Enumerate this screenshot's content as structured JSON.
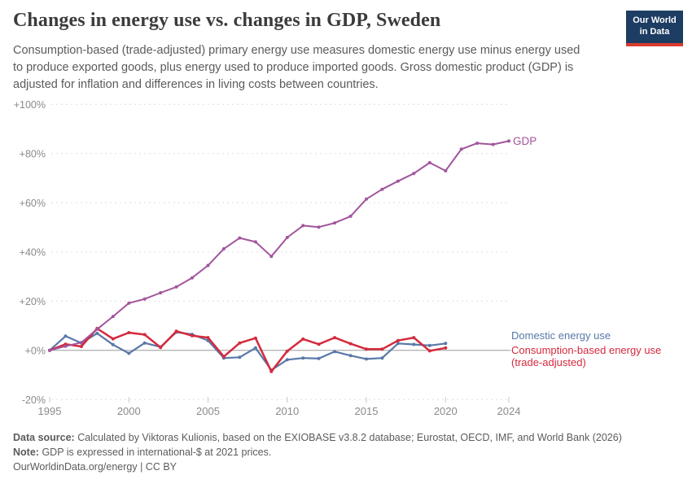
{
  "header": {
    "title": "Changes in energy use vs. changes in GDP, Sweden",
    "subtitle": "Consumption-based (trade-adjusted) primary energy use measures domestic energy use minus energy used to produce exported goods, plus energy used to produce imported goods. Gross domestic product (GDP) is adjusted for inflation and differences in living costs between countries.",
    "logo": {
      "line1": "Our World",
      "line2": "in Data",
      "bg_color": "#1d3d63",
      "bar_color": "#d93b2f"
    }
  },
  "chart_data": {
    "type": "line",
    "title": "Changes in energy use vs. changes in GDP, Sweden",
    "x_axis": {
      "ticks": [
        1995,
        2000,
        2005,
        2010,
        2015,
        2020,
        2024
      ],
      "range": [
        1995,
        2024
      ]
    },
    "y_axis": {
      "unit": "%",
      "range": [
        -20,
        100
      ],
      "grid": "dashed",
      "ticks": [
        {
          "value": 100,
          "label": "+100%"
        },
        {
          "value": 80,
          "label": "+80%"
        },
        {
          "value": 60,
          "label": "+60%"
        },
        {
          "value": 40,
          "label": "+40%"
        },
        {
          "value": 20,
          "label": "+20%"
        },
        {
          "value": 0,
          "label": "+0%"
        },
        {
          "value": -20,
          "label": "-20%"
        }
      ]
    },
    "series": [
      {
        "name": "Domestic energy use",
        "label": "Domestic energy use",
        "color": "#5878a8",
        "width": 2.2,
        "x": [
          1995,
          1996,
          1997,
          1998,
          1999,
          2000,
          2001,
          2002,
          2003,
          2004,
          2005,
          2006,
          2007,
          2008,
          2009,
          2010,
          2011,
          2012,
          2013,
          2014,
          2015,
          2016,
          2017,
          2018,
          2019,
          2020
        ],
        "values": [
          0,
          5.8,
          3.0,
          6.9,
          2.3,
          -1.2,
          3.0,
          1.4,
          7.4,
          6.5,
          4.0,
          -3.1,
          -2.8,
          1.0,
          -8.0,
          -3.8,
          -3.1,
          -3.3,
          -0.5,
          -2.1,
          -3.5,
          -3.1,
          2.8,
          2.4,
          2.0,
          2.8
        ]
      },
      {
        "name": "Consumption-based energy use (trade-adjusted)",
        "label_line1": "Consumption-based energy use",
        "label_line2": "(trade-adjusted)",
        "color": "#d42a3d",
        "width": 2.5,
        "x": [
          1995,
          1996,
          1997,
          1998,
          1999,
          2000,
          2001,
          2002,
          2003,
          2004,
          2005,
          2006,
          2007,
          2008,
          2009,
          2010,
          2011,
          2012,
          2013,
          2014,
          2015,
          2016,
          2017,
          2018,
          2019,
          2020
        ],
        "values": [
          0,
          2.5,
          1.6,
          8.9,
          4.7,
          7.2,
          6.4,
          1.2,
          7.8,
          6.0,
          5.2,
          -2.5,
          3.0,
          5.0,
          -8.6,
          -0.3,
          4.6,
          2.5,
          5.2,
          2.7,
          0.5,
          0.5,
          4.0,
          5.2,
          -0.2,
          1.0
        ]
      },
      {
        "name": "GDP",
        "label": "GDP",
        "color": "#a2559c",
        "width": 2,
        "x": [
          1995,
          1996,
          1997,
          1998,
          1999,
          2000,
          2001,
          2002,
          2003,
          2004,
          2005,
          2006,
          2007,
          2008,
          2009,
          2010,
          2011,
          2012,
          2013,
          2014,
          2015,
          2016,
          2017,
          2018,
          2019,
          2020,
          2021,
          2022,
          2023,
          2024
        ],
        "values": [
          0,
          1.7,
          3.2,
          8.6,
          13.8,
          19.2,
          20.9,
          23.4,
          25.8,
          29.5,
          34.5,
          41.3,
          45.7,
          44.1,
          38.2,
          45.9,
          50.7,
          50.1,
          51.8,
          54.5,
          61.5,
          65.5,
          68.8,
          71.9,
          76.3,
          73.0,
          81.8,
          84.2,
          83.7,
          85.1
        ]
      }
    ]
  },
  "footer": {
    "source_label": "Data source:",
    "source_text": "Calculated by Viktoras Kulionis, based on the EXIOBASE v3.8.2 database; Eurostat, OECD, IMF, and World Bank (2026)",
    "note_label": "Note:",
    "note_text": "GDP is expressed in international-$ at 2021 prices.",
    "credit": "OurWorldinData.org/energy | CC BY"
  }
}
